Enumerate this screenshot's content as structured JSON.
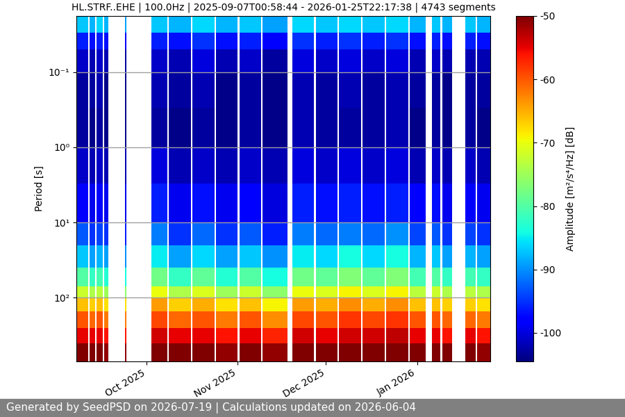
{
  "chart_data": {
    "type": "heatmap",
    "title": "HL.STRF..EHE | 100.0Hz | 2025-09-07T00:58:44 - 2026-01-25T22:17:38 | 4743 segments",
    "y_label": "Period [s]",
    "colorbar_label": "Amplitude [m²/s⁴/Hz] [dB]",
    "footer": "Generated by SeedPSD on 2026-07-19 | Calculations updated on 2026-06-04",
    "color": "jet",
    "log": "y",
    "grid": "y",
    "xlim": [
      "2025-09-07T00:58:44",
      "2026-01-25T22:17:38"
    ],
    "xticks": [
      {
        "value": "2025-10-01",
        "label": "Oct 2025"
      },
      {
        "value": "2025-11-01",
        "label": "Nov 2025"
      },
      {
        "value": "2025-12-01",
        "label": "Dec 2025"
      },
      {
        "value": "2026-01-01",
        "label": "Jan 2026"
      }
    ],
    "ylim": [
      700,
      0.018
    ],
    "yticks": [
      {
        "value": 0.1,
        "label": "10⁻¹"
      },
      {
        "value": 1,
        "label": "10⁰"
      },
      {
        "value": 10,
        "label": "10¹"
      },
      {
        "value": 100,
        "label": "10²"
      }
    ],
    "clim": [
      -104.5,
      -50
    ],
    "cticks": [
      -100,
      -90,
      -80,
      -70,
      -60,
      -50
    ],
    "period_edges": [
      0.018,
      0.03,
      0.05,
      0.1,
      0.3,
      1,
      3,
      10,
      20,
      40,
      70,
      100,
      150,
      250,
      400,
      700
    ],
    "segments": [
      {
        "start": "2025-09-07T00:58:44",
        "end": "2025-09-11T00:00:00",
        "values": [
          -87,
          -96,
          -101,
          -103,
          -103,
          -101,
          -98,
          -93,
          -87,
          -80,
          -72,
          -66,
          -60,
          -55,
          -50
        ]
      },
      {
        "start": "2025-09-11T12:00:00",
        "end": "2025-09-13T12:00:00",
        "values": [
          -88,
          -97,
          -102,
          -103,
          -104,
          -102,
          -99,
          -95,
          -89,
          -82,
          -74,
          -67,
          -61,
          -55,
          -50
        ]
      },
      {
        "start": "2025-09-14T00:00:00",
        "end": "2025-09-16T00:00:00",
        "values": [
          -86,
          -96,
          -101,
          -102,
          -103,
          -101,
          -98,
          -94,
          -88,
          -81,
          -73,
          -66,
          -60,
          -55,
          -50
        ]
      },
      {
        "start": "2025-09-16T12:00:00",
        "end": "2025-09-18T00:00:00",
        "values": [
          -88,
          -97,
          -102,
          -104,
          -104,
          -102,
          -99,
          -95,
          -89,
          -83,
          -75,
          -68,
          -62,
          -56,
          -51
        ]
      },
      {
        "start": "2025-09-23T12:00:00",
        "end": "2025-09-24T00:00:00",
        "values": [
          -89,
          -98,
          -103,
          -104,
          -104,
          -102,
          -99,
          -96,
          -90,
          -84,
          -76,
          -68,
          -62,
          -56,
          -51
        ]
      },
      {
        "start": "2025-10-02T12:00:00",
        "end": "2025-10-08T00:00:00",
        "values": [
          -87,
          -96,
          -101,
          -102,
          -103,
          -100,
          -96,
          -91,
          -85,
          -78,
          -70,
          -64,
          -59,
          -54,
          -50
        ]
      },
      {
        "start": "2025-10-08T12:00:00",
        "end": "2025-10-16T00:00:00",
        "values": [
          -88,
          -97,
          -102,
          -103,
          -104,
          -102,
          -99,
          -95,
          -89,
          -82,
          -74,
          -67,
          -61,
          -55,
          -50
        ]
      },
      {
        "start": "2025-10-16T12:00:00",
        "end": "2025-10-24T00:00:00",
        "values": [
          -86,
          -95,
          -100,
          -102,
          -103,
          -101,
          -97,
          -92,
          -86,
          -79,
          -71,
          -65,
          -60,
          -55,
          -50
        ]
      },
      {
        "start": "2025-10-24T12:00:00",
        "end": "2025-11-01T00:00:00",
        "values": [
          -88,
          -97,
          -102,
          -104,
          -104,
          -102,
          -99,
          -95,
          -89,
          -83,
          -75,
          -68,
          -62,
          -56,
          -51
        ]
      },
      {
        "start": "2025-11-01T12:00:00",
        "end": "2025-11-09T00:00:00",
        "values": [
          -87,
          -96,
          -101,
          -103,
          -103,
          -101,
          -98,
          -93,
          -87,
          -80,
          -72,
          -66,
          -60,
          -55,
          -50
        ]
      },
      {
        "start": "2025-11-09T12:00:00",
        "end": "2025-11-18T00:00:00",
        "values": [
          -89,
          -98,
          -103,
          -104,
          -104,
          -102,
          -100,
          -96,
          -90,
          -84,
          -76,
          -69,
          -63,
          -57,
          -51
        ]
      },
      {
        "start": "2025-11-19T12:00:00",
        "end": "2025-11-27T00:00:00",
        "values": [
          -86,
          -95,
          -100,
          -102,
          -102,
          -100,
          -96,
          -91,
          -85,
          -78,
          -70,
          -64,
          -59,
          -54,
          -50
        ]
      },
      {
        "start": "2025-11-27T12:00:00",
        "end": "2025-12-05T00:00:00",
        "values": [
          -87,
          -96,
          -101,
          -103,
          -103,
          -101,
          -97,
          -92,
          -86,
          -79,
          -71,
          -65,
          -60,
          -55,
          -50
        ]
      },
      {
        "start": "2025-12-05T12:00:00",
        "end": "2025-12-13T00:00:00",
        "values": [
          -86,
          -95,
          -100,
          -102,
          -103,
          -100,
          -96,
          -91,
          -84,
          -77,
          -69,
          -63,
          -58,
          -54,
          -50
        ]
      },
      {
        "start": "2025-12-13T12:00:00",
        "end": "2025-12-21T00:00:00",
        "values": [
          -87,
          -96,
          -101,
          -103,
          -103,
          -101,
          -97,
          -92,
          -86,
          -79,
          -71,
          -65,
          -59,
          -54,
          -50
        ]
      },
      {
        "start": "2025-12-21T12:00:00",
        "end": "2025-12-29T00:00:00",
        "values": [
          -86,
          -95,
          -100,
          -102,
          -102,
          -100,
          -96,
          -90,
          -84,
          -77,
          -69,
          -63,
          -58,
          -53,
          -50
        ]
      },
      {
        "start": "2025-12-29T12:00:00",
        "end": "2026-01-04T00:00:00",
        "values": [
          -88,
          -97,
          -102,
          -103,
          -104,
          -102,
          -98,
          -94,
          -88,
          -81,
          -73,
          -66,
          -60,
          -55,
          -50
        ]
      },
      {
        "start": "2026-01-06T00:00:00",
        "end": "2026-01-09T00:00:00",
        "values": [
          -87,
          -96,
          -101,
          -103,
          -103,
          -101,
          -97,
          -93,
          -87,
          -80,
          -72,
          -66,
          -60,
          -55,
          -50
        ]
      },
      {
        "start": "2026-01-09T12:00:00",
        "end": "2026-01-13T00:00:00",
        "values": [
          -88,
          -97,
          -102,
          -104,
          -104,
          -102,
          -99,
          -95,
          -89,
          -82,
          -74,
          -67,
          -61,
          -56,
          -50
        ]
      },
      {
        "start": "2026-01-17T12:00:00",
        "end": "2026-01-21T00:00:00",
        "values": [
          -87,
          -96,
          -102,
          -103,
          -103,
          -101,
          -98,
          -94,
          -88,
          -81,
          -73,
          -67,
          -61,
          -55,
          -50
        ]
      },
      {
        "start": "2026-01-21T12:00:00",
        "end": "2026-01-25T22:17:38",
        "values": [
          -88,
          -97,
          -102,
          -103,
          -104,
          -102,
          -99,
          -95,
          -89,
          -82,
          -74,
          -68,
          -62,
          -56,
          -51
        ]
      }
    ]
  }
}
